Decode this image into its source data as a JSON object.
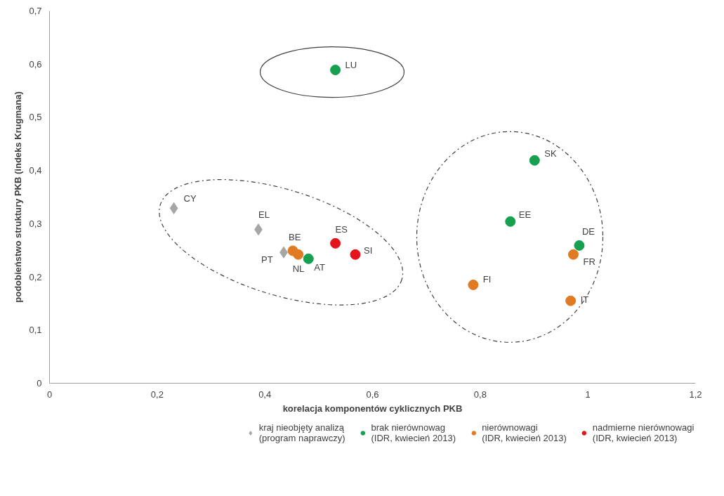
{
  "chart_data": {
    "type": "scatter",
    "xlabel": "korelacja komponentów cyklicznych PKB",
    "ylabel": "podobieństwo struktury PKB (indeks Krugmana)",
    "xlim": [
      0,
      1.2
    ],
    "ylim": [
      0,
      0.7
    ],
    "xticks": [
      0,
      {
        "value": 0.2,
        "label": "0,2"
      },
      {
        "value": 0.4,
        "label": "0,4"
      },
      {
        "value": 0.6,
        "label": "0,6"
      },
      {
        "value": 0.8,
        "label": "0,8"
      },
      1,
      {
        "value": 1.2,
        "label": "1,2"
      }
    ],
    "yticks": [
      0,
      {
        "value": 0.1,
        "label": "0,1"
      },
      {
        "value": 0.2,
        "label": "0,2"
      },
      {
        "value": 0.3,
        "label": "0,3"
      },
      {
        "value": 0.4,
        "label": "0,4"
      },
      {
        "value": 0.5,
        "label": "0,5"
      },
      {
        "value": 0.6,
        "label": "0,6"
      },
      {
        "value": 0.7,
        "label": "0,7"
      }
    ],
    "grid": false,
    "legend": "bottom",
    "series": [
      {
        "name": "kraj nieobjęty analizą\n(program naprawczy)",
        "color": "#a6a6a6",
        "marker": "diamond",
        "x": [
          0.231,
          0.388,
          0.435
        ],
        "values": [
          0.329,
          0.289,
          0.246
        ]
      },
      {
        "name": "brak nierównowag\n(IDR, kwiecień 2013)",
        "color": "#16a050",
        "marker": "circle",
        "x": [
          0.481,
          0.531,
          0.901,
          0.856,
          0.984
        ],
        "values": [
          0.234,
          0.589,
          0.419,
          0.304,
          0.259
        ]
      },
      {
        "name": "nierównowagi\n(IDR, kwiecień 2013)",
        "color": "#e07b24",
        "marker": "circle",
        "x": [
          0.452,
          0.462,
          0.973,
          0.787,
          0.968
        ],
        "values": [
          0.249,
          0.242,
          0.242,
          0.185,
          0.155
        ]
      },
      {
        "name": "nadmierne nierównowagi\n(IDR, kwiecień 2013)",
        "color": "#e3151a",
        "marker": "circle",
        "x": [
          0.531,
          0.568
        ],
        "values": [
          0.263,
          0.242
        ]
      }
    ],
    "annotations": [
      {
        "text": "CY",
        "x": 0.231,
        "y": 0.329
      },
      {
        "text": "EL",
        "x": 0.388,
        "y": 0.289
      },
      {
        "text": "PT",
        "x": 0.435,
        "y": 0.246
      },
      {
        "text": "BE",
        "x": 0.452,
        "y": 0.249
      },
      {
        "text": "NL",
        "x": 0.462,
        "y": 0.242
      },
      {
        "text": "AT",
        "x": 0.481,
        "y": 0.234
      },
      {
        "text": "ES",
        "x": 0.531,
        "y": 0.263
      },
      {
        "text": "SI",
        "x": 0.568,
        "y": 0.242
      },
      {
        "text": "LU",
        "x": 0.531,
        "y": 0.589
      },
      {
        "text": "SK",
        "x": 0.901,
        "y": 0.419
      },
      {
        "text": "EE",
        "x": 0.856,
        "y": 0.304
      },
      {
        "text": "DE",
        "x": 0.984,
        "y": 0.259
      },
      {
        "text": "FR",
        "x": 0.973,
        "y": 0.242
      },
      {
        "text": "FI",
        "x": 0.787,
        "y": 0.185
      },
      {
        "text": "IT",
        "x": 0.968,
        "y": 0.155
      }
    ]
  }
}
